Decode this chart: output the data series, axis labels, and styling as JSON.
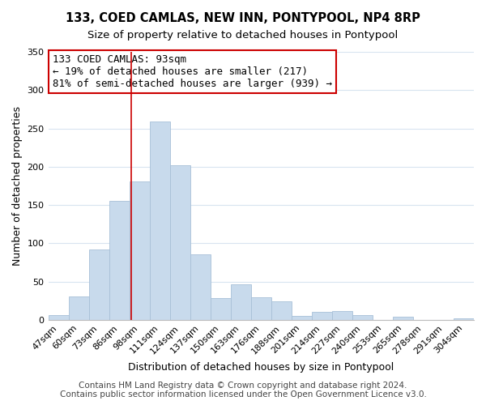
{
  "title": "133, COED CAMLAS, NEW INN, PONTYPOOL, NP4 8RP",
  "subtitle": "Size of property relative to detached houses in Pontypool",
  "xlabel": "Distribution of detached houses by size in Pontypool",
  "ylabel": "Number of detached properties",
  "bar_color": "#c8daec",
  "bar_edge_color": "#a8c0d8",
  "categories": [
    "47sqm",
    "60sqm",
    "73sqm",
    "86sqm",
    "98sqm",
    "111sqm",
    "124sqm",
    "137sqm",
    "150sqm",
    "163sqm",
    "176sqm",
    "188sqm",
    "201sqm",
    "214sqm",
    "227sqm",
    "240sqm",
    "253sqm",
    "265sqm",
    "278sqm",
    "291sqm",
    "304sqm"
  ],
  "values": [
    6,
    31,
    92,
    155,
    181,
    259,
    202,
    85,
    28,
    46,
    29,
    24,
    5,
    10,
    11,
    6,
    0,
    4,
    0,
    0,
    2
  ],
  "ylim": [
    0,
    350
  ],
  "yticks": [
    0,
    50,
    100,
    150,
    200,
    250,
    300,
    350
  ],
  "annotation_title": "133 COED CAMLAS: 93sqm",
  "annotation_line1": "← 19% of detached houses are smaller (217)",
  "annotation_line2": "81% of semi-detached houses are larger (939) →",
  "footer1": "Contains HM Land Registry data © Crown copyright and database right 2024.",
  "footer2": "Contains public sector information licensed under the Open Government Licence v3.0.",
  "background_color": "#ffffff",
  "grid_color": "#d8e4f0",
  "title_fontsize": 10.5,
  "subtitle_fontsize": 9.5,
  "xlabel_fontsize": 9,
  "ylabel_fontsize": 9,
  "tick_fontsize": 8,
  "annotation_fontsize": 9,
  "footer_fontsize": 7.5,
  "vline_color": "#cc0000",
  "vline_x_idx": 3.54
}
